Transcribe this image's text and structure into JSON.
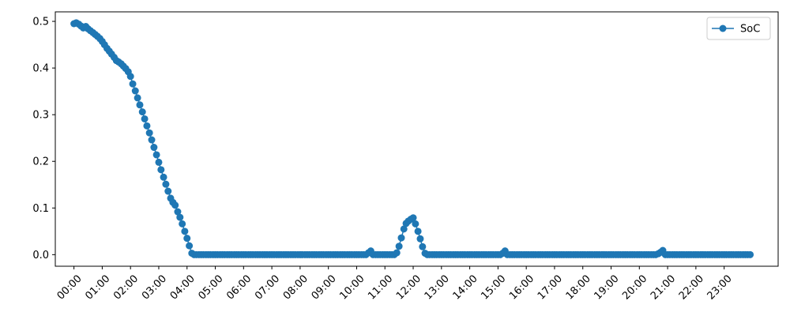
{
  "chart_data": {
    "type": "line",
    "x_unit": "hours",
    "xlim": [
      -0.66,
      24.91
    ],
    "ylim": [
      -0.0248,
      0.5204
    ],
    "x_ticks": [
      {
        "value": 0,
        "label": "00:00"
      },
      {
        "value": 1,
        "label": "01:00"
      },
      {
        "value": 2,
        "label": "02:00"
      },
      {
        "value": 3,
        "label": "03:00"
      },
      {
        "value": 4,
        "label": "04:00"
      },
      {
        "value": 5,
        "label": "05:00"
      },
      {
        "value": 6,
        "label": "06:00"
      },
      {
        "value": 7,
        "label": "07:00"
      },
      {
        "value": 8,
        "label": "08:00"
      },
      {
        "value": 9,
        "label": "09:00"
      },
      {
        "value": 10,
        "label": "10:00"
      },
      {
        "value": 11,
        "label": "11:00"
      },
      {
        "value": 12,
        "label": "12:00"
      },
      {
        "value": 13,
        "label": "13:00"
      },
      {
        "value": 14,
        "label": "14:00"
      },
      {
        "value": 15,
        "label": "15:00"
      },
      {
        "value": 16,
        "label": "16:00"
      },
      {
        "value": 17,
        "label": "17:00"
      },
      {
        "value": 18,
        "label": "18:00"
      },
      {
        "value": 19,
        "label": "19:00"
      },
      {
        "value": 20,
        "label": "20:00"
      },
      {
        "value": 21,
        "label": "21:00"
      },
      {
        "value": 22,
        "label": "22:00"
      },
      {
        "value": 23,
        "label": "23:00"
      }
    ],
    "y_ticks": [
      {
        "value": 0.0,
        "label": "0.0"
      },
      {
        "value": 0.1,
        "label": "0.1"
      },
      {
        "value": 0.2,
        "label": "0.2"
      },
      {
        "value": 0.3,
        "label": "0.3"
      },
      {
        "value": 0.4,
        "label": "0.4"
      },
      {
        "value": 0.5,
        "label": "0.5"
      }
    ],
    "grid": false,
    "legend": {
      "placement": "top-right",
      "entries": [
        "SoC"
      ]
    },
    "series": [
      {
        "name": "SoC",
        "color": "#1f77b4",
        "marker": "circle",
        "points": [
          [
            0.0,
            0.495
          ],
          [
            0.08,
            0.497
          ],
          [
            0.17,
            0.494
          ],
          [
            0.25,
            0.49
          ],
          [
            0.33,
            0.486
          ],
          [
            0.42,
            0.489
          ],
          [
            0.5,
            0.484
          ],
          [
            0.58,
            0.48
          ],
          [
            0.67,
            0.476
          ],
          [
            0.75,
            0.472
          ],
          [
            0.83,
            0.468
          ],
          [
            0.92,
            0.463
          ],
          [
            1.0,
            0.457
          ],
          [
            1.08,
            0.45
          ],
          [
            1.17,
            0.442
          ],
          [
            1.25,
            0.436
          ],
          [
            1.33,
            0.43
          ],
          [
            1.42,
            0.423
          ],
          [
            1.5,
            0.416
          ],
          [
            1.58,
            0.413
          ],
          [
            1.67,
            0.409
          ],
          [
            1.75,
            0.404
          ],
          [
            1.83,
            0.399
          ],
          [
            1.92,
            0.392
          ],
          [
            2.0,
            0.382
          ],
          [
            2.08,
            0.366
          ],
          [
            2.17,
            0.351
          ],
          [
            2.25,
            0.336
          ],
          [
            2.33,
            0.321
          ],
          [
            2.42,
            0.306
          ],
          [
            2.5,
            0.291
          ],
          [
            2.58,
            0.276
          ],
          [
            2.67,
            0.261
          ],
          [
            2.75,
            0.246
          ],
          [
            2.83,
            0.23
          ],
          [
            2.92,
            0.214
          ],
          [
            3.0,
            0.198
          ],
          [
            3.08,
            0.182
          ],
          [
            3.17,
            0.166
          ],
          [
            3.25,
            0.151
          ],
          [
            3.33,
            0.136
          ],
          [
            3.42,
            0.121
          ],
          [
            3.5,
            0.112
          ],
          [
            3.58,
            0.106
          ],
          [
            3.67,
            0.092
          ],
          [
            3.75,
            0.08
          ],
          [
            3.83,
            0.066
          ],
          [
            3.92,
            0.05
          ],
          [
            4.0,
            0.035
          ],
          [
            4.08,
            0.019
          ],
          [
            4.17,
            0.003
          ],
          [
            4.25,
            0.0
          ],
          [
            4.33,
            0.0
          ],
          [
            4.42,
            0.0
          ],
          [
            4.5,
            0.0
          ],
          [
            4.58,
            0.0
          ],
          [
            4.67,
            0.0
          ],
          [
            4.75,
            0.0
          ],
          [
            4.83,
            0.0
          ],
          [
            4.92,
            0.0
          ],
          [
            5.0,
            0.0
          ],
          [
            5.08,
            0.0
          ],
          [
            5.17,
            0.0
          ],
          [
            5.25,
            0.0
          ],
          [
            5.33,
            0.0
          ],
          [
            5.42,
            0.0
          ],
          [
            5.5,
            0.0
          ],
          [
            5.58,
            0.0
          ],
          [
            5.67,
            0.0
          ],
          [
            5.75,
            0.0
          ],
          [
            5.83,
            0.0
          ],
          [
            5.92,
            0.0
          ],
          [
            6.0,
            0.0
          ],
          [
            6.08,
            0.0
          ],
          [
            6.17,
            0.0
          ],
          [
            6.25,
            0.0
          ],
          [
            6.33,
            0.0
          ],
          [
            6.42,
            0.0
          ],
          [
            6.5,
            0.0
          ],
          [
            6.58,
            0.0
          ],
          [
            6.67,
            0.0
          ],
          [
            6.75,
            0.0
          ],
          [
            6.83,
            0.0
          ],
          [
            6.92,
            0.0
          ],
          [
            7.0,
            0.0
          ],
          [
            7.08,
            0.0
          ],
          [
            7.17,
            0.0
          ],
          [
            7.25,
            0.0
          ],
          [
            7.33,
            0.0
          ],
          [
            7.42,
            0.0
          ],
          [
            7.5,
            0.0
          ],
          [
            7.58,
            0.0
          ],
          [
            7.67,
            0.0
          ],
          [
            7.75,
            0.0
          ],
          [
            7.83,
            0.0
          ],
          [
            7.92,
            0.0
          ],
          [
            8.0,
            0.0
          ],
          [
            8.08,
            0.0
          ],
          [
            8.17,
            0.0
          ],
          [
            8.25,
            0.0
          ],
          [
            8.33,
            0.0
          ],
          [
            8.42,
            0.0
          ],
          [
            8.5,
            0.0
          ],
          [
            8.58,
            0.0
          ],
          [
            8.67,
            0.0
          ],
          [
            8.75,
            0.0
          ],
          [
            8.83,
            0.0
          ],
          [
            8.92,
            0.0
          ],
          [
            9.0,
            0.0
          ],
          [
            9.08,
            0.0
          ],
          [
            9.17,
            0.0
          ],
          [
            9.25,
            0.0
          ],
          [
            9.33,
            0.0
          ],
          [
            9.42,
            0.0
          ],
          [
            9.5,
            0.0
          ],
          [
            9.58,
            0.0
          ],
          [
            9.67,
            0.0
          ],
          [
            9.75,
            0.0
          ],
          [
            9.83,
            0.0
          ],
          [
            9.92,
            0.0
          ],
          [
            10.0,
            0.0
          ],
          [
            10.08,
            0.0
          ],
          [
            10.17,
            0.0
          ],
          [
            10.25,
            0.0
          ],
          [
            10.33,
            0.0
          ],
          [
            10.42,
            0.004
          ],
          [
            10.5,
            0.008
          ],
          [
            10.58,
            0.0
          ],
          [
            10.67,
            0.0
          ],
          [
            10.75,
            0.0
          ],
          [
            10.83,
            0.0
          ],
          [
            10.92,
            0.0
          ],
          [
            11.0,
            0.0
          ],
          [
            11.08,
            0.0
          ],
          [
            11.17,
            0.0
          ],
          [
            11.25,
            0.0
          ],
          [
            11.33,
            0.0
          ],
          [
            11.42,
            0.004
          ],
          [
            11.5,
            0.018
          ],
          [
            11.58,
            0.036
          ],
          [
            11.67,
            0.055
          ],
          [
            11.75,
            0.067
          ],
          [
            11.83,
            0.072
          ],
          [
            11.92,
            0.076
          ],
          [
            12.0,
            0.079
          ],
          [
            12.08,
            0.066
          ],
          [
            12.17,
            0.05
          ],
          [
            12.25,
            0.034
          ],
          [
            12.33,
            0.017
          ],
          [
            12.42,
            0.003
          ],
          [
            12.5,
            0.0
          ],
          [
            12.58,
            0.0
          ],
          [
            12.67,
            0.0
          ],
          [
            12.75,
            0.0
          ],
          [
            12.83,
            0.0
          ],
          [
            12.92,
            0.0
          ],
          [
            13.0,
            0.0
          ],
          [
            13.08,
            0.0
          ],
          [
            13.17,
            0.0
          ],
          [
            13.25,
            0.0
          ],
          [
            13.33,
            0.0
          ],
          [
            13.42,
            0.0
          ],
          [
            13.5,
            0.0
          ],
          [
            13.58,
            0.0
          ],
          [
            13.67,
            0.0
          ],
          [
            13.75,
            0.0
          ],
          [
            13.83,
            0.0
          ],
          [
            13.92,
            0.0
          ],
          [
            14.0,
            0.0
          ],
          [
            14.08,
            0.0
          ],
          [
            14.17,
            0.0
          ],
          [
            14.25,
            0.0
          ],
          [
            14.33,
            0.0
          ],
          [
            14.42,
            0.0
          ],
          [
            14.5,
            0.0
          ],
          [
            14.58,
            0.0
          ],
          [
            14.67,
            0.0
          ],
          [
            14.75,
            0.0
          ],
          [
            14.83,
            0.0
          ],
          [
            14.92,
            0.0
          ],
          [
            15.0,
            0.0
          ],
          [
            15.08,
            0.0
          ],
          [
            15.17,
            0.003
          ],
          [
            15.25,
            0.008
          ],
          [
            15.33,
            0.0
          ],
          [
            15.42,
            0.0
          ],
          [
            15.5,
            0.0
          ],
          [
            15.58,
            0.0
          ],
          [
            15.67,
            0.0
          ],
          [
            15.75,
            0.0
          ],
          [
            15.83,
            0.0
          ],
          [
            15.92,
            0.0
          ],
          [
            16.0,
            0.0
          ],
          [
            16.08,
            0.0
          ],
          [
            16.17,
            0.0
          ],
          [
            16.25,
            0.0
          ],
          [
            16.33,
            0.0
          ],
          [
            16.42,
            0.0
          ],
          [
            16.5,
            0.0
          ],
          [
            16.58,
            0.0
          ],
          [
            16.67,
            0.0
          ],
          [
            16.75,
            0.0
          ],
          [
            16.83,
            0.0
          ],
          [
            16.92,
            0.0
          ],
          [
            17.0,
            0.0
          ],
          [
            17.08,
            0.0
          ],
          [
            17.17,
            0.0
          ],
          [
            17.25,
            0.0
          ],
          [
            17.33,
            0.0
          ],
          [
            17.42,
            0.0
          ],
          [
            17.5,
            0.0
          ],
          [
            17.58,
            0.0
          ],
          [
            17.67,
            0.0
          ],
          [
            17.75,
            0.0
          ],
          [
            17.83,
            0.0
          ],
          [
            17.92,
            0.0
          ],
          [
            18.0,
            0.0
          ],
          [
            18.08,
            0.0
          ],
          [
            18.17,
            0.0
          ],
          [
            18.25,
            0.0
          ],
          [
            18.33,
            0.0
          ],
          [
            18.42,
            0.0
          ],
          [
            18.5,
            0.0
          ],
          [
            18.58,
            0.0
          ],
          [
            18.67,
            0.0
          ],
          [
            18.75,
            0.0
          ],
          [
            18.83,
            0.0
          ],
          [
            18.92,
            0.0
          ],
          [
            19.0,
            0.0
          ],
          [
            19.08,
            0.0
          ],
          [
            19.17,
            0.0
          ],
          [
            19.25,
            0.0
          ],
          [
            19.33,
            0.0
          ],
          [
            19.42,
            0.0
          ],
          [
            19.5,
            0.0
          ],
          [
            19.58,
            0.0
          ],
          [
            19.67,
            0.0
          ],
          [
            19.75,
            0.0
          ],
          [
            19.83,
            0.0
          ],
          [
            19.92,
            0.0
          ],
          [
            20.0,
            0.0
          ],
          [
            20.08,
            0.0
          ],
          [
            20.17,
            0.0
          ],
          [
            20.25,
            0.0
          ],
          [
            20.33,
            0.0
          ],
          [
            20.42,
            0.0
          ],
          [
            20.5,
            0.0
          ],
          [
            20.58,
            0.0
          ],
          [
            20.67,
            0.002
          ],
          [
            20.75,
            0.005
          ],
          [
            20.83,
            0.009
          ],
          [
            20.92,
            0.0
          ],
          [
            21.0,
            0.0
          ],
          [
            21.08,
            0.0
          ],
          [
            21.17,
            0.0
          ],
          [
            21.25,
            0.0
          ],
          [
            21.33,
            0.0
          ],
          [
            21.42,
            0.0
          ],
          [
            21.5,
            0.0
          ],
          [
            21.58,
            0.0
          ],
          [
            21.67,
            0.0
          ],
          [
            21.75,
            0.0
          ],
          [
            21.83,
            0.0
          ],
          [
            21.92,
            0.0
          ],
          [
            22.0,
            0.0
          ],
          [
            22.08,
            0.0
          ],
          [
            22.17,
            0.0
          ],
          [
            22.25,
            0.0
          ],
          [
            22.33,
            0.0
          ],
          [
            22.42,
            0.0
          ],
          [
            22.5,
            0.0
          ],
          [
            22.58,
            0.0
          ],
          [
            22.67,
            0.0
          ],
          [
            22.75,
            0.0
          ],
          [
            22.83,
            0.0
          ],
          [
            22.92,
            0.0
          ],
          [
            23.0,
            0.0
          ],
          [
            23.08,
            0.0
          ],
          [
            23.17,
            0.0
          ],
          [
            23.25,
            0.0
          ],
          [
            23.33,
            0.0
          ],
          [
            23.42,
            0.0
          ],
          [
            23.5,
            0.0
          ],
          [
            23.58,
            0.0
          ],
          [
            23.67,
            0.0
          ],
          [
            23.75,
            0.0
          ],
          [
            23.83,
            0.0
          ],
          [
            23.92,
            0.0
          ]
        ]
      }
    ]
  }
}
